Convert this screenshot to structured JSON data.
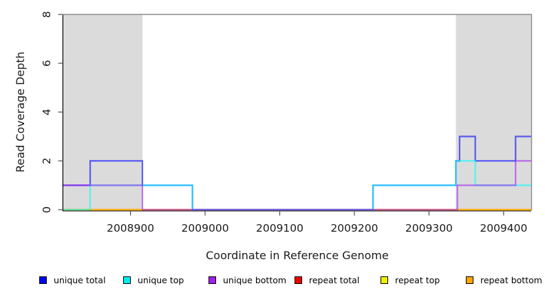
{
  "figure": {
    "background": "#FFFFFF",
    "axis_color": "#000000",
    "box_border_color": "#8C8C8C",
    "tick_color": "#4D4D4D"
  },
  "chart_data": {
    "type": "line",
    "subtype": "step-post",
    "title": "",
    "xlabel": "Coordinate in Reference Genome",
    "ylabel": "Read Coverage Depth",
    "xlim": [
      2008810,
      2009437
    ],
    "ylim": [
      0,
      8
    ],
    "x_ticks": [
      2008900,
      2009000,
      2009100,
      2009200,
      2009300,
      2009400
    ],
    "y_ticks": [
      0,
      2,
      4,
      6,
      8
    ],
    "grid": false,
    "legend_position": "bottom",
    "line_opacity": 0.6,
    "line_width": 2.2,
    "shade_color": "#DBDBDB",
    "shaded_regions": [
      {
        "x0": 2008810,
        "x1": 2008916
      },
      {
        "x0": 2009336,
        "x1": 2009437
      }
    ],
    "draw_order": [
      "repeat total",
      "repeat top",
      "repeat bottom",
      "unique total",
      "unique top",
      "unique bottom"
    ],
    "series": [
      {
        "name": "unique total",
        "color": "#0000FF",
        "steps": [
          [
            2008810,
            1
          ],
          [
            2008846,
            2
          ],
          [
            2008916,
            1
          ],
          [
            2008983,
            0
          ],
          [
            2009225,
            1
          ],
          [
            2009336,
            2
          ],
          [
            2009341,
            3
          ],
          [
            2009362,
            2
          ],
          [
            2009416,
            3
          ],
          [
            2009437,
            3
          ]
        ]
      },
      {
        "name": "unique top",
        "color": "#00FFFF",
        "steps": [
          [
            2008810,
            0
          ],
          [
            2008846,
            1
          ],
          [
            2008983,
            0
          ],
          [
            2009225,
            1
          ],
          [
            2009336,
            2
          ],
          [
            2009362,
            1
          ],
          [
            2009437,
            1
          ]
        ]
      },
      {
        "name": "unique bottom",
        "color": "#A020F0",
        "steps": [
          [
            2008810,
            1
          ],
          [
            2008916,
            0
          ],
          [
            2009338,
            1
          ],
          [
            2009416,
            2
          ],
          [
            2009437,
            2
          ]
        ]
      },
      {
        "name": "repeat total",
        "color": "#FF0000",
        "steps": [
          [
            2008810,
            0
          ],
          [
            2009437,
            0
          ]
        ]
      },
      {
        "name": "repeat top",
        "color": "#FFFF00",
        "steps": [
          [
            2008810,
            0
          ],
          [
            2009437,
            0
          ]
        ]
      },
      {
        "name": "repeat bottom",
        "color": "#FFA500",
        "steps": [
          [
            2008810,
            0
          ],
          [
            2009437,
            0
          ]
        ]
      }
    ]
  },
  "legend": {
    "swatch_border": "#000000",
    "items": [
      {
        "label": "unique total",
        "color": "#0000EE"
      },
      {
        "label": "unique top",
        "color": "#00EEEE"
      },
      {
        "label": "unique bottom",
        "color": "#A020F0"
      },
      {
        "label": "repeat total",
        "color": "#EE0000"
      },
      {
        "label": "repeat top",
        "color": "#EEEE00"
      },
      {
        "label": "repeat bottom",
        "color": "#FFA500"
      }
    ]
  }
}
